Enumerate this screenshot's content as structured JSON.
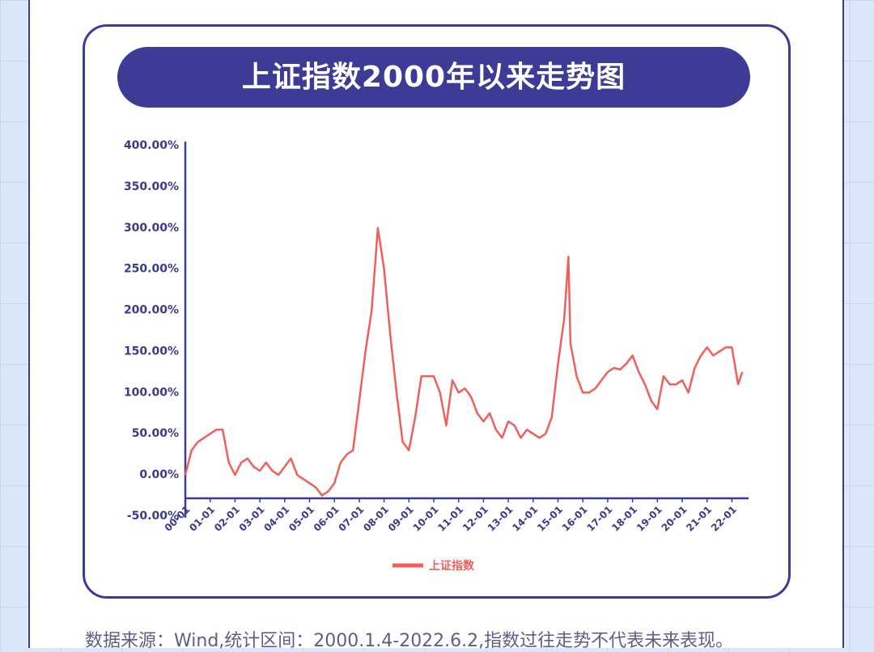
{
  "chart_data": {
    "type": "line",
    "title": "上证指数2000年以来走势图",
    "source_note": "数据来源：Wind,统计区间：2000.1.4-2022.6.2,指数过往走势不代表未来表现。",
    "xlim": [
      2000,
      2022.67
    ],
    "xticks": [
      {
        "value": 2000,
        "label": "00-01"
      },
      {
        "value": 2001,
        "label": "01-01"
      },
      {
        "value": 2002,
        "label": "02-01"
      },
      {
        "value": 2003,
        "label": "03-01"
      },
      {
        "value": 2004,
        "label": "04-01"
      },
      {
        "value": 2005,
        "label": "05-01"
      },
      {
        "value": 2006,
        "label": "06-01"
      },
      {
        "value": 2007,
        "label": "07-01"
      },
      {
        "value": 2008,
        "label": "08-01"
      },
      {
        "value": 2009,
        "label": "09-01"
      },
      {
        "value": 2010,
        "label": "10-01"
      },
      {
        "value": 2011,
        "label": "11-01"
      },
      {
        "value": 2012,
        "label": "12-01"
      },
      {
        "value": 2013,
        "label": "13-01"
      },
      {
        "value": 2014,
        "label": "14-01"
      },
      {
        "value": 2015,
        "label": "15-01"
      },
      {
        "value": 2016,
        "label": "16-01"
      },
      {
        "value": 2017,
        "label": "17-01"
      },
      {
        "value": 2018,
        "label": "18-01"
      },
      {
        "value": 2019,
        "label": "19-01"
      },
      {
        "value": 2020,
        "label": "20-01"
      },
      {
        "value": 2021,
        "label": "21-01"
      },
      {
        "value": 2022,
        "label": "22-01"
      }
    ],
    "ylim": [
      -50,
      400
    ],
    "yticks": [
      {
        "value": -50,
        "label": "-50.00%"
      },
      {
        "value": 0,
        "label": "0.00%"
      },
      {
        "value": 50,
        "label": "50.00%"
      },
      {
        "value": 100,
        "label": "100.00%"
      },
      {
        "value": 150,
        "label": "150.00%"
      },
      {
        "value": 200,
        "label": "200.00%"
      },
      {
        "value": 250,
        "label": "250.00%"
      },
      {
        "value": 300,
        "label": "300.00%"
      },
      {
        "value": 350,
        "label": "350.00%"
      },
      {
        "value": 400,
        "label": "400.00%"
      }
    ],
    "x": [
      2000,
      2000.25,
      2000.5,
      2000.75,
      2001,
      2001.25,
      2001.5,
      2001.75,
      2002,
      2002.25,
      2002.5,
      2002.75,
      2003,
      2003.25,
      2003.5,
      2003.75,
      2004,
      2004.25,
      2004.5,
      2004.75,
      2005,
      2005.25,
      2005.5,
      2005.75,
      2006,
      2006.25,
      2006.5,
      2006.75,
      2007,
      2007.25,
      2007.5,
      2007.75,
      2008,
      2008.25,
      2008.5,
      2008.75,
      2009,
      2009.25,
      2009.5,
      2009.75,
      2010,
      2010.25,
      2010.5,
      2010.75,
      2011,
      2011.25,
      2011.5,
      2011.75,
      2012,
      2012.25,
      2012.5,
      2012.75,
      2013,
      2013.25,
      2013.5,
      2013.75,
      2014,
      2014.25,
      2014.5,
      2014.75,
      2015,
      2015.25,
      2015.42,
      2015.5,
      2015.75,
      2016,
      2016.25,
      2016.5,
      2016.75,
      2017,
      2017.25,
      2017.5,
      2017.75,
      2018,
      2018.25,
      2018.5,
      2018.75,
      2019,
      2019.25,
      2019.5,
      2019.75,
      2020,
      2020.25,
      2020.5,
      2020.75,
      2021,
      2021.25,
      2021.5,
      2021.75,
      2022,
      2022.25,
      2022.42
    ],
    "series": [
      {
        "name": "上证指数",
        "color": "#f0605a",
        "values": [
          0,
          30,
          40,
          45,
          50,
          55,
          55,
          15,
          0,
          15,
          20,
          10,
          5,
          15,
          5,
          0,
          10,
          20,
          0,
          -5,
          -10,
          -15,
          -25,
          -20,
          -10,
          15,
          25,
          30,
          90,
          150,
          200,
          300,
          250,
          170,
          100,
          40,
          30,
          70,
          120,
          120,
          120,
          100,
          60,
          115,
          100,
          105,
          95,
          75,
          65,
          75,
          55,
          45,
          65,
          60,
          45,
          55,
          50,
          45,
          50,
          70,
          135,
          190,
          265,
          160,
          120,
          100,
          100,
          105,
          115,
          125,
          130,
          128,
          135,
          145,
          125,
          110,
          90,
          80,
          120,
          110,
          110,
          115,
          100,
          130,
          145,
          155,
          145,
          150,
          155,
          155,
          110,
          125
        ]
      }
    ]
  }
}
